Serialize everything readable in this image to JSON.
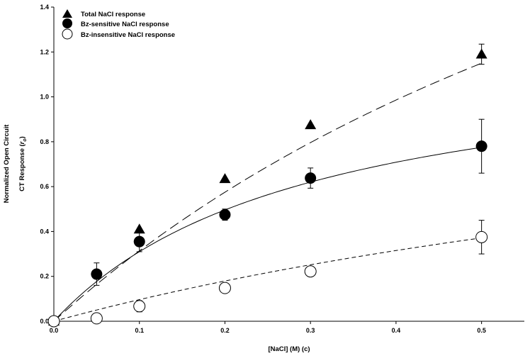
{
  "chart_data": {
    "type": "scatter",
    "title": "",
    "xlabel": "[NaCl] (M) (c)",
    "ylabel_line1": "Normalized Open Circuit",
    "ylabel_line2_prefix": "CT Response (",
    "ylabel_r": "r",
    "ylabel_sub": "o",
    "ylabel_line2_suffix": ")",
    "xlim": [
      0.0,
      0.55
    ],
    "ylim": [
      0.0,
      1.4
    ],
    "xticks": [
      "0.0",
      "0.1",
      "0.2",
      "0.3",
      "0.4",
      "0.5"
    ],
    "yticks": [
      "0.0",
      "0.2",
      "0.4",
      "0.6",
      "0.8",
      "1.0",
      "1.2",
      "1.4"
    ],
    "legend_position": "top-left",
    "series": [
      {
        "name": "Total NaCl response",
        "marker": "triangle",
        "color": "#000000",
        "x": [
          0.0,
          0.1,
          0.2,
          0.3,
          0.5
        ],
        "y": [
          0.0,
          0.41,
          0.635,
          0.875,
          1.19
        ],
        "err": [
          0,
          0,
          0,
          0,
          0.045
        ],
        "fit": {
          "style": "long-dash",
          "vmax": 3.45,
          "k": 1.0
        }
      },
      {
        "name": "Bz-sensitive NaCl response",
        "marker": "filled-circle",
        "color": "#000000",
        "x": [
          0.0,
          0.05,
          0.1,
          0.2,
          0.3,
          0.5
        ],
        "y": [
          0.0,
          0.21,
          0.355,
          0.475,
          0.638,
          0.78
        ],
        "err": [
          0,
          0.05,
          0.045,
          0.025,
          0.045,
          0.12
        ],
        "fit": {
          "style": "solid",
          "vmax": 1.24,
          "k": 0.3
        }
      },
      {
        "name": "Bz-insensitive NaCl response",
        "marker": "open-circle",
        "color": "#000000",
        "x": [
          0.0,
          0.05,
          0.1,
          0.2,
          0.3,
          0.5
        ],
        "y": [
          0.0,
          0.013,
          0.067,
          0.148,
          0.222,
          0.375
        ],
        "err": [
          0,
          0,
          0.025,
          0,
          0.02,
          0.075
        ],
        "fit": {
          "style": "short-dash",
          "vmax": 1.3,
          "k": 1.25
        }
      }
    ]
  }
}
